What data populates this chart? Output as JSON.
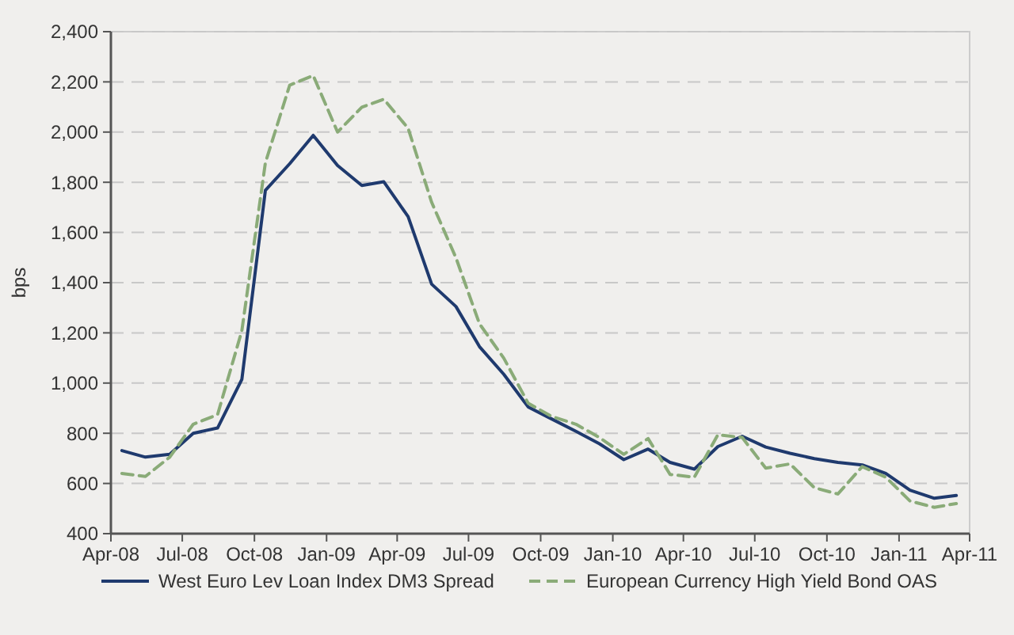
{
  "chart_data": {
    "type": "line",
    "ylabel": "bps",
    "x": [
      "2008-04-15",
      "2008-05-15",
      "2008-06-15",
      "2008-07-15",
      "2008-08-15",
      "2008-09-15",
      "2008-10-15",
      "2008-11-15",
      "2008-12-15",
      "2009-01-15",
      "2009-02-15",
      "2009-03-15",
      "2009-04-15",
      "2009-05-15",
      "2009-06-15",
      "2009-07-15",
      "2009-08-15",
      "2009-09-15",
      "2009-10-15",
      "2009-11-15",
      "2009-12-15",
      "2010-01-15",
      "2010-02-15",
      "2010-03-15",
      "2010-04-15",
      "2010-05-15",
      "2010-06-15",
      "2010-07-15",
      "2010-08-15",
      "2010-09-15",
      "2010-10-15",
      "2010-11-15",
      "2010-12-15",
      "2011-01-15",
      "2011-02-15",
      "2011-03-15"
    ],
    "series": [
      {
        "name": "West Euro Lev Loan Index DM3 Spread",
        "color": "#1f3a6e",
        "line_style": "solid",
        "values": [
          731,
          705,
          716,
          800,
          821,
          1015,
          1768,
          1874,
          1987,
          1867,
          1787,
          1802,
          1663,
          1394,
          1305,
          1145,
          1035,
          905,
          857,
          808,
          758,
          695,
          737,
          684,
          657,
          747,
          788,
          745,
          720,
          699,
          684,
          674,
          640,
          573,
          541,
          552
        ]
      },
      {
        "name": "European Currency High Yield Bond OAS",
        "color": "#8aab78",
        "line_style": "dashed",
        "values": [
          640,
          628,
          705,
          836,
          874,
          1209,
          1878,
          2187,
          2225,
          2000,
          2099,
          2131,
          2015,
          1720,
          1499,
          1236,
          1099,
          920,
          867,
          836,
          783,
          716,
          779,
          636,
          625,
          794,
          783,
          661,
          678,
          583,
          558,
          667,
          625,
          530,
          505,
          520
        ]
      }
    ],
    "xlim": [
      "2008-04-01",
      "2011-04-01"
    ],
    "xticks": [
      {
        "value": "2008-04-01",
        "label": "Apr-08"
      },
      {
        "value": "2008-07-01",
        "label": "Jul-08"
      },
      {
        "value": "2008-10-01",
        "label": "Oct-08"
      },
      {
        "value": "2009-01-01",
        "label": "Jan-09"
      },
      {
        "value": "2009-04-01",
        "label": "Apr-09"
      },
      {
        "value": "2009-07-01",
        "label": "Jul-09"
      },
      {
        "value": "2009-10-01",
        "label": "Oct-09"
      },
      {
        "value": "2010-01-01",
        "label": "Jan-10"
      },
      {
        "value": "2010-04-01",
        "label": "Apr-10"
      },
      {
        "value": "2010-07-01",
        "label": "Jul-10"
      },
      {
        "value": "2010-10-01",
        "label": "Oct-10"
      },
      {
        "value": "2011-01-01",
        "label": "Jan-11"
      },
      {
        "value": "2011-04-01",
        "label": "Apr-11"
      }
    ],
    "ylim": [
      400,
      2400
    ],
    "yticks": [
      {
        "value": 400,
        "label": "400"
      },
      {
        "value": 600,
        "label": "600"
      },
      {
        "value": 800,
        "label": "800"
      },
      {
        "value": 1000,
        "label": "1,000"
      },
      {
        "value": 1200,
        "label": "1,200"
      },
      {
        "value": 1400,
        "label": "1,400"
      },
      {
        "value": 1600,
        "label": "1,600"
      },
      {
        "value": 1800,
        "label": "1,800"
      },
      {
        "value": 2000,
        "label": "2,000"
      },
      {
        "value": 2200,
        "label": "2,200"
      },
      {
        "value": 2400,
        "label": "2,400"
      }
    ],
    "grid": "y",
    "legend": "bottom",
    "marker": "none"
  }
}
